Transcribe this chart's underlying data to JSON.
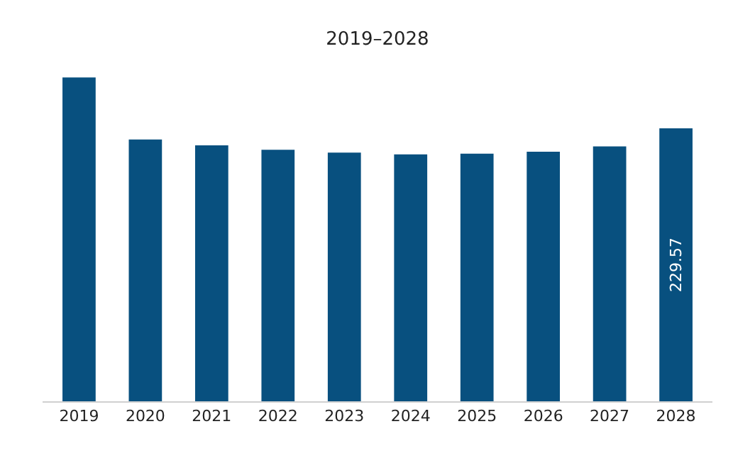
{
  "chart_data": {
    "type": "bar",
    "title": "2019–2028",
    "categories": [
      "2019",
      "2020",
      "2021",
      "2022",
      "2023",
      "2024",
      "2025",
      "2026",
      "2027",
      "2028"
    ],
    "values": [
      272.4,
      220.1,
      215.2,
      211.5,
      209.1,
      207.6,
      208.2,
      209.9,
      214.4,
      229.57
    ],
    "value_labels": [
      null,
      null,
      null,
      null,
      null,
      null,
      null,
      null,
      null,
      "229.57"
    ],
    "color": "#08507f"
  }
}
